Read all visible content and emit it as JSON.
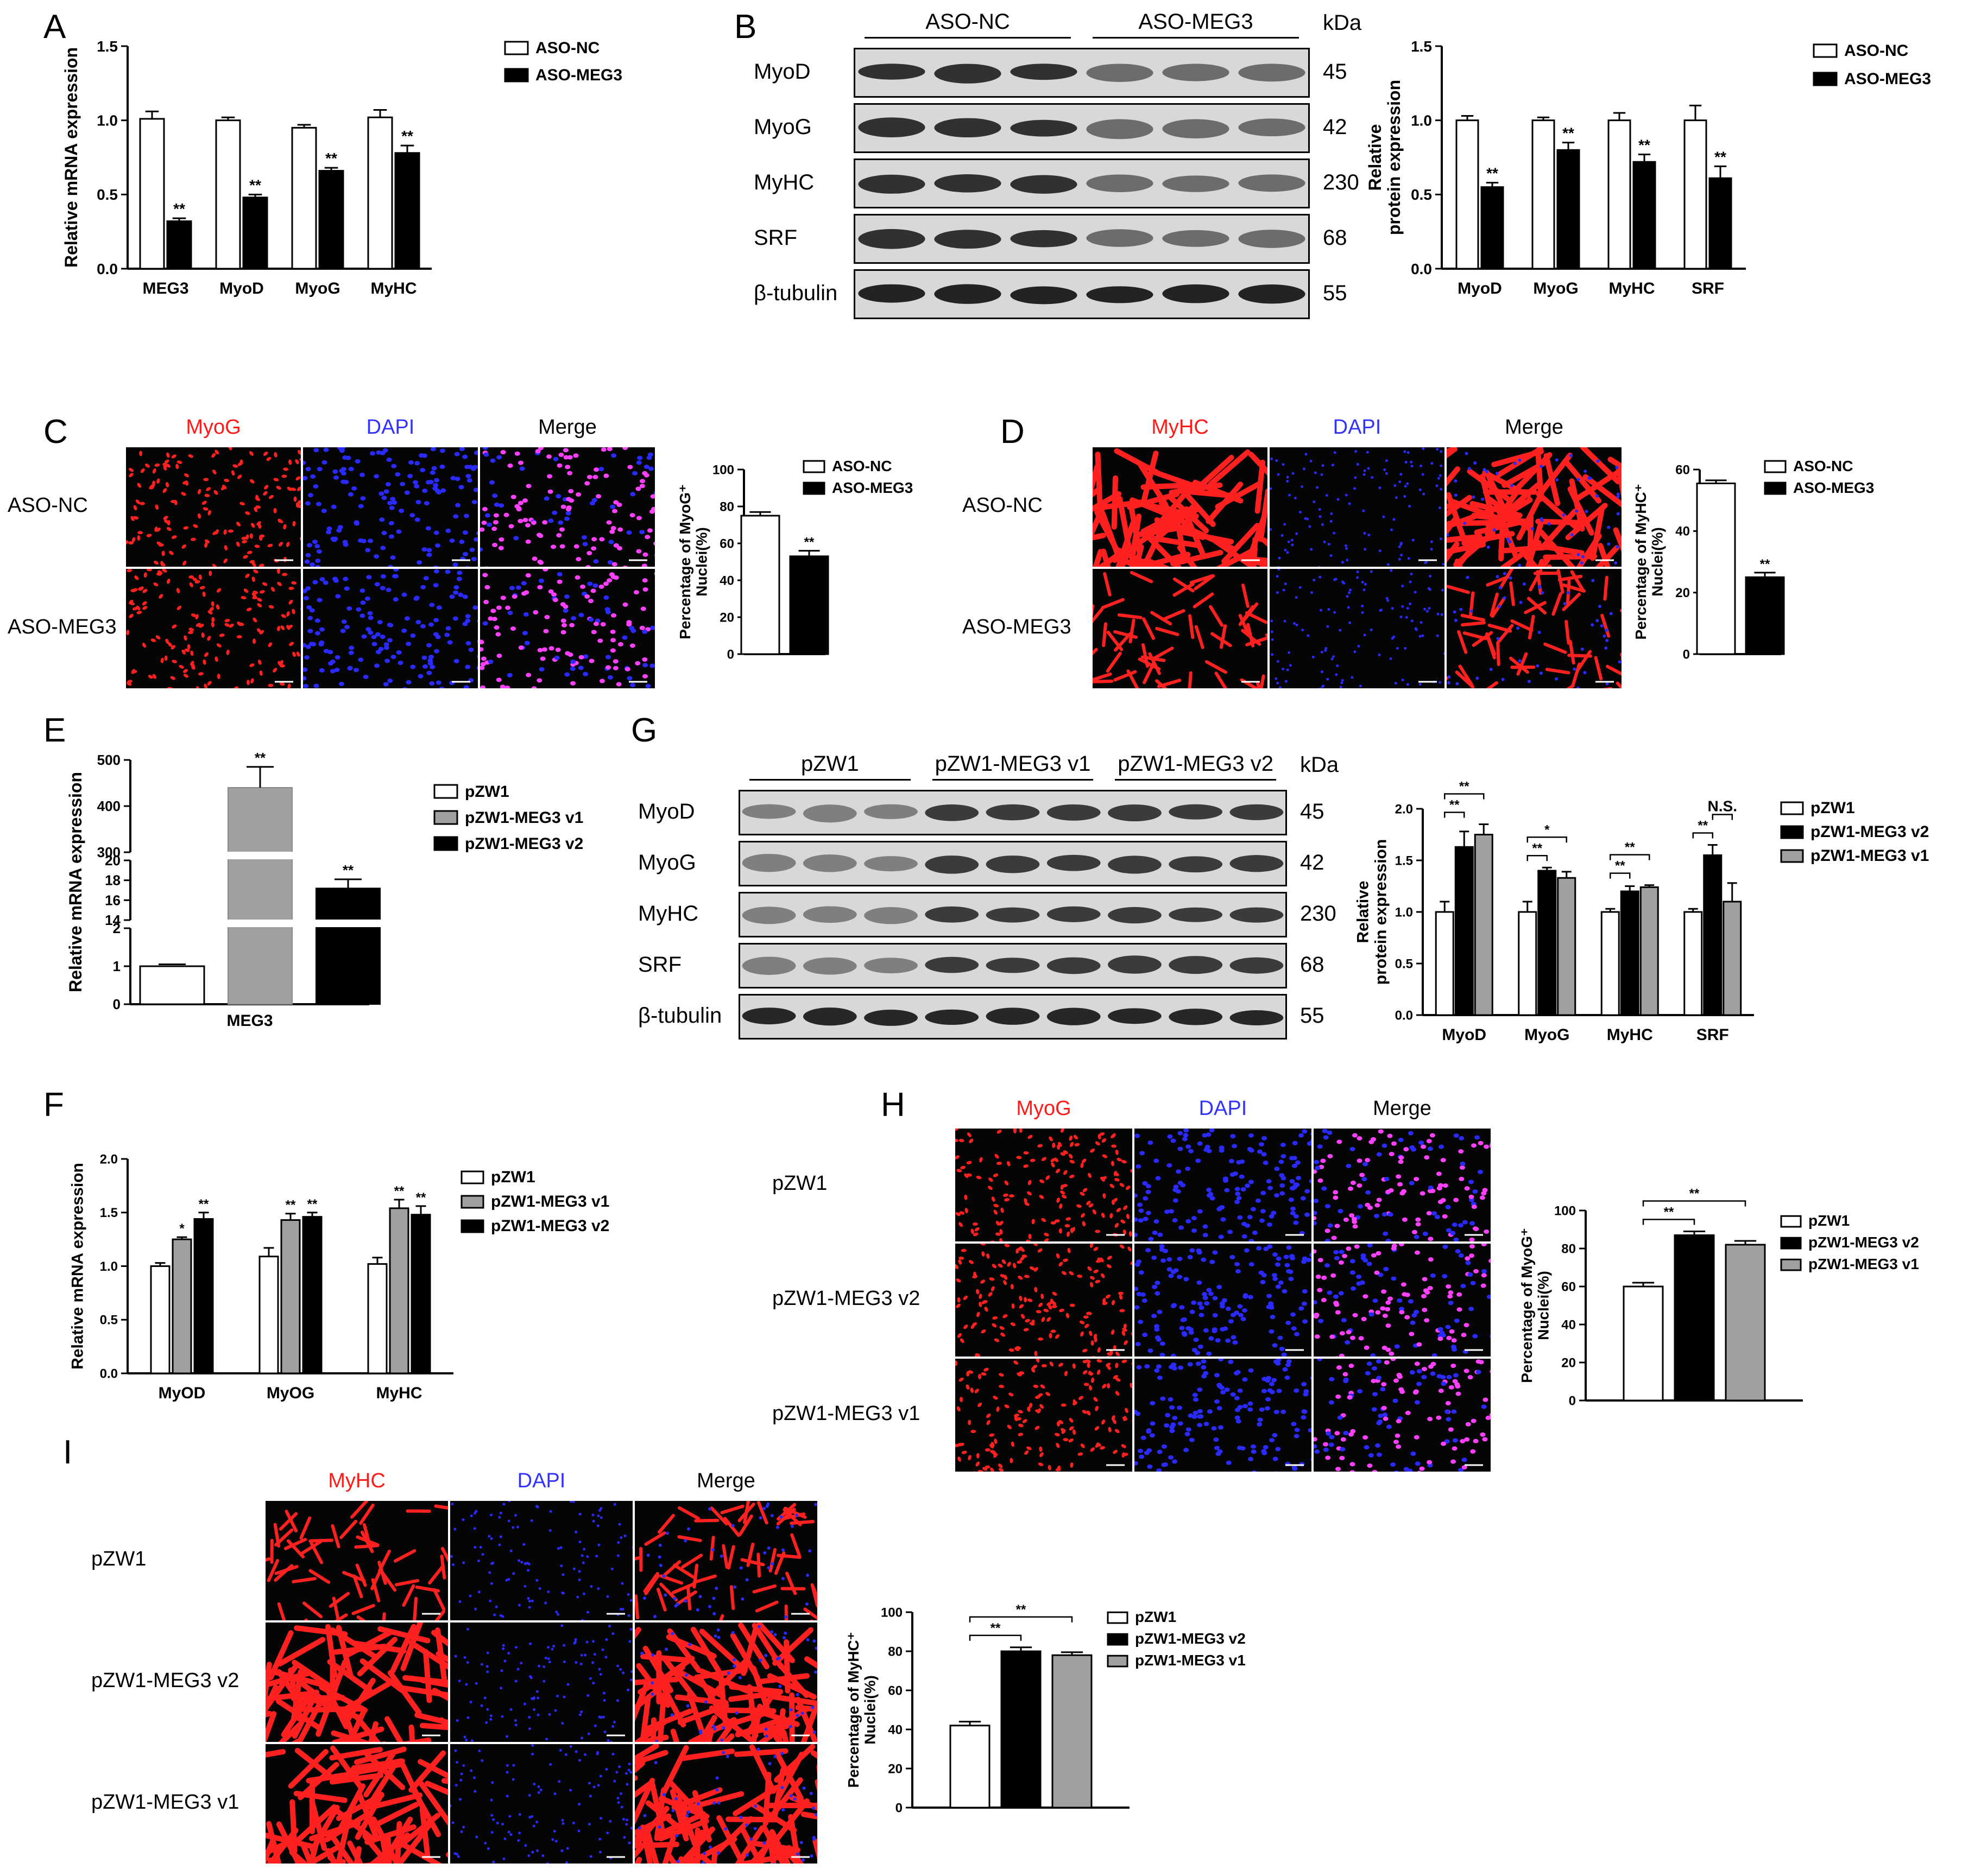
{
  "panels": {
    "A": "A",
    "B": "B",
    "C": "C",
    "D": "D",
    "E": "E",
    "F": "F",
    "G": "G",
    "H": "H",
    "I": "I"
  },
  "colors": {
    "myog_red": "#ff1a1a",
    "dapi_blue": "#3333ff",
    "merge_black": "#000000",
    "white_bar": "#ffffff",
    "black_bar": "#000000",
    "gray_bar": "#a0a0a0"
  },
  "chart_data": [
    {
      "id": "A",
      "type": "bar",
      "ylabel": "Relative mRNA expression",
      "ylim": [
        0,
        1.5
      ],
      "yticks": [
        "0.0",
        "0.5",
        "1.0",
        "1.5"
      ],
      "categories": [
        "MEG3",
        "MyoD",
        "MyoG",
        "MyHC"
      ],
      "series": [
        {
          "name": "ASO-NC",
          "fill": "#ffffff",
          "values": [
            1.01,
            1.0,
            0.95,
            1.02
          ],
          "err": [
            0.05,
            0.02,
            0.02,
            0.05
          ],
          "sig": [
            "",
            "",
            "",
            ""
          ]
        },
        {
          "name": "ASO-MEG3",
          "fill": "#000000",
          "values": [
            0.32,
            0.48,
            0.66,
            0.78
          ],
          "err": [
            0.02,
            0.02,
            0.02,
            0.05
          ],
          "sig": [
            "**",
            "**",
            "**",
            "**"
          ]
        }
      ]
    },
    {
      "id": "B",
      "type": "bar",
      "ylabel": "Relative protein expression",
      "ylim": [
        0,
        1.5
      ],
      "yticks": [
        "0.0",
        "0.5",
        "1.0",
        "1.5"
      ],
      "categories": [
        "MyoD",
        "MyoG",
        "MyHC",
        "SRF"
      ],
      "series": [
        {
          "name": "ASO-NC",
          "fill": "#ffffff",
          "values": [
            1.0,
            1.0,
            1.0,
            1.0
          ],
          "err": [
            0.03,
            0.02,
            0.05,
            0.1
          ],
          "sig": [
            "",
            "",
            "",
            ""
          ]
        },
        {
          "name": "ASO-MEG3",
          "fill": "#000000",
          "values": [
            0.55,
            0.8,
            0.72,
            0.61
          ],
          "err": [
            0.03,
            0.05,
            0.05,
            0.08
          ],
          "sig": [
            "**",
            "**",
            "**",
            "**"
          ]
        }
      ]
    },
    {
      "id": "C",
      "type": "bar",
      "ylabel": "Percentage of MyoG+ Nuclei(%)",
      "ylim": [
        0,
        100
      ],
      "yticks": [
        "0",
        "20",
        "40",
        "60",
        "80",
        "100"
      ],
      "categories": [
        ""
      ],
      "series": [
        {
          "name": "ASO-NC",
          "fill": "#ffffff",
          "values": [
            75
          ],
          "err": [
            2
          ],
          "sig": [
            ""
          ]
        },
        {
          "name": "ASO-MEG3",
          "fill": "#000000",
          "values": [
            53
          ],
          "err": [
            3
          ],
          "sig": [
            "**"
          ]
        }
      ]
    },
    {
      "id": "D",
      "type": "bar",
      "ylabel": "Percentage of MyHC+ Nuclei(%)",
      "ylim": [
        0,
        60
      ],
      "yticks": [
        "0",
        "20",
        "40",
        "60"
      ],
      "categories": [
        ""
      ],
      "series": [
        {
          "name": "ASO-NC",
          "fill": "#ffffff",
          "values": [
            55.5
          ],
          "err": [
            1
          ],
          "sig": [
            ""
          ]
        },
        {
          "name": "ASO-MEG3",
          "fill": "#000000",
          "values": [
            25
          ],
          "err": [
            1.5
          ],
          "sig": [
            "**"
          ]
        }
      ]
    },
    {
      "id": "E",
      "type": "bar",
      "ylabel": "Relative mRNA expression",
      "scale": "broken",
      "yticks": [
        "0",
        "1",
        "2",
        "14",
        "16",
        "18",
        "20",
        "300",
        "400",
        "500"
      ],
      "categories": [
        "MEG3"
      ],
      "series": [
        {
          "name": "pZW1",
          "fill": "#ffffff",
          "values": [
            1.0
          ],
          "err": [
            0.05
          ],
          "sig": [
            ""
          ]
        },
        {
          "name": "pZW1-MEG3 v1",
          "fill": "#a0a0a0",
          "values": [
            440
          ],
          "err": [
            45
          ],
          "sig": [
            "**"
          ]
        },
        {
          "name": "pZW1-MEG3 v2",
          "fill": "#000000",
          "values": [
            17.2
          ],
          "err": [
            0.9
          ],
          "sig": [
            "**"
          ]
        }
      ]
    },
    {
      "id": "F",
      "type": "bar",
      "ylabel": "Relative mRNA expression",
      "ylim": [
        0,
        2.0
      ],
      "yticks": [
        "0.0",
        "0.5",
        "1.0",
        "1.5",
        "2.0"
      ],
      "categories": [
        "MyOD",
        "MyOG",
        "MyHC"
      ],
      "series": [
        {
          "name": "pZW1",
          "fill": "#ffffff",
          "values": [
            1.0,
            1.09,
            1.02
          ],
          "err": [
            0.03,
            0.08,
            0.06
          ],
          "sig": [
            "",
            "",
            ""
          ]
        },
        {
          "name": "pZW1-MEG3 v1",
          "fill": "#a0a0a0",
          "values": [
            1.25,
            1.43,
            1.54
          ],
          "err": [
            0.02,
            0.06,
            0.08
          ],
          "sig": [
            "*",
            "**",
            "**"
          ]
        },
        {
          "name": "pZW1-MEG3 v2",
          "fill": "#000000",
          "values": [
            1.44,
            1.46,
            1.48
          ],
          "err": [
            0.06,
            0.04,
            0.08
          ],
          "sig": [
            "**",
            "**",
            "**"
          ]
        }
      ]
    },
    {
      "id": "G",
      "type": "bar",
      "ylabel": "Relative protein expression",
      "ylim": [
        0,
        2.0
      ],
      "yticks": [
        "0.0",
        "0.5",
        "1.0",
        "1.5",
        "2.0"
      ],
      "categories": [
        "MyoD",
        "MyoG",
        "MyHC",
        "SRF"
      ],
      "series": [
        {
          "name": "pZW1",
          "fill": "#ffffff",
          "values": [
            1.0,
            1.0,
            1.0,
            1.0
          ],
          "err": [
            0.1,
            0.1,
            0.03,
            0.03
          ],
          "sig": [
            "",
            "",
            "",
            ""
          ]
        },
        {
          "name": "pZW1-MEG3 v2",
          "fill": "#000000",
          "values": [
            1.63,
            1.4,
            1.2,
            1.55
          ],
          "err": [
            0.15,
            0.03,
            0.05,
            0.1
          ],
          "sig": [
            "",
            "",
            "",
            ""
          ]
        },
        {
          "name": "pZW1-MEG3 v1",
          "fill": "#a0a0a0",
          "values": [
            1.75,
            1.33,
            1.24,
            1.1
          ],
          "err": [
            0.1,
            0.06,
            0.02,
            0.18
          ],
          "sig": [
            "",
            "",
            "",
            ""
          ]
        }
      ],
      "brackets": [
        {
          "cat": 0,
          "from": 0,
          "to": 1,
          "label": "**",
          "level": 0
        },
        {
          "cat": 0,
          "from": 0,
          "to": 2,
          "label": "**",
          "level": 1
        },
        {
          "cat": 1,
          "from": 0,
          "to": 1,
          "label": "**",
          "level": 0
        },
        {
          "cat": 1,
          "from": 0,
          "to": 2,
          "label": "*",
          "level": 1
        },
        {
          "cat": 2,
          "from": 0,
          "to": 1,
          "label": "**",
          "level": 0
        },
        {
          "cat": 2,
          "from": 0,
          "to": 2,
          "label": "**",
          "level": 1
        },
        {
          "cat": 3,
          "from": 0,
          "to": 1,
          "label": "**",
          "level": 0
        },
        {
          "cat": 3,
          "from": 1,
          "to": 2,
          "label": "N.S.",
          "level": 1
        }
      ]
    },
    {
      "id": "H",
      "type": "bar",
      "ylabel": "Percentage of MyoG+ Nuclei(%)",
      "ylim": [
        0,
        100
      ],
      "yticks": [
        "0",
        "20",
        "40",
        "60",
        "80",
        "100"
      ],
      "categories": [
        ""
      ],
      "series": [
        {
          "name": "pZW1",
          "fill": "#ffffff",
          "values": [
            60
          ],
          "err": [
            2
          ],
          "sig": [
            ""
          ]
        },
        {
          "name": "pZW1-MEG3 v2",
          "fill": "#000000",
          "values": [
            87
          ],
          "err": [
            2
          ],
          "sig": [
            ""
          ]
        },
        {
          "name": "pZW1-MEG3 v1",
          "fill": "#a0a0a0",
          "values": [
            82
          ],
          "err": [
            2
          ],
          "sig": [
            ""
          ]
        }
      ],
      "brackets": [
        {
          "cat": 0,
          "from": 0,
          "to": 1,
          "label": "**",
          "level": 0
        },
        {
          "cat": 0,
          "from": 0,
          "to": 2,
          "label": "**",
          "level": 1
        }
      ]
    },
    {
      "id": "I",
      "type": "bar",
      "ylabel": "Percentage of MyHC+ Nuclei(%)",
      "ylim": [
        0,
        100
      ],
      "yticks": [
        "0",
        "20",
        "40",
        "60",
        "80",
        "100"
      ],
      "categories": [
        ""
      ],
      "series": [
        {
          "name": "pZW1",
          "fill": "#ffffff",
          "values": [
            42
          ],
          "err": [
            2
          ],
          "sig": [
            ""
          ]
        },
        {
          "name": "pZW1-MEG3 v2",
          "fill": "#000000",
          "values": [
            80
          ],
          "err": [
            2
          ],
          "sig": [
            ""
          ]
        },
        {
          "name": "pZW1-MEG3 v1",
          "fill": "#a0a0a0",
          "values": [
            78
          ],
          "err": [
            1.5
          ],
          "sig": [
            ""
          ]
        }
      ],
      "brackets": [
        {
          "cat": 0,
          "from": 0,
          "to": 1,
          "label": "**",
          "level": 0
        },
        {
          "cat": 0,
          "from": 0,
          "to": 2,
          "label": "**",
          "level": 1
        }
      ]
    }
  ],
  "blotB": {
    "groups": [
      "ASO-NC",
      "ASO-MEG3"
    ],
    "kda_label": "kDa",
    "rows": [
      {
        "label": "MyoD",
        "kda": "45"
      },
      {
        "label": "MyoG",
        "kda": "42"
      },
      {
        "label": "MyHC",
        "kda": "230"
      },
      {
        "label": "SRF",
        "kda": "68"
      },
      {
        "label": "β-tubulin",
        "kda": "55"
      }
    ]
  },
  "blotG": {
    "groups": [
      "pZW1",
      "pZW1-MEG3 v1",
      "pZW1-MEG3 v2"
    ],
    "kda_label": "kDa",
    "rows": [
      {
        "label": "MyoD",
        "kda": "45"
      },
      {
        "label": "MyoG",
        "kda": "42"
      },
      {
        "label": "MyHC",
        "kda": "230"
      },
      {
        "label": "SRF",
        "kda": "68"
      },
      {
        "label": "β-tubulin",
        "kda": "55"
      }
    ]
  },
  "micrographs": {
    "C": {
      "cols": [
        "MyoG",
        "DAPI",
        "Merge"
      ],
      "rows": [
        "ASO-NC",
        "ASO-MEG3"
      ],
      "stain": "nuclei"
    },
    "D": {
      "cols": [
        "MyHC",
        "DAPI",
        "Merge"
      ],
      "rows": [
        "ASO-NC",
        "ASO-MEG3"
      ],
      "stain": "fibers"
    },
    "H": {
      "cols": [
        "MyoG",
        "DAPI",
        "Merge"
      ],
      "rows": [
        "pZW1",
        "pZW1-MEG3 v2",
        "pZW1-MEG3 v1"
      ],
      "stain": "nuclei"
    },
    "I": {
      "cols": [
        "MyHC",
        "DAPI",
        "Merge"
      ],
      "rows": [
        "pZW1",
        "pZW1-MEG3 v2",
        "pZW1-MEG3 v1"
      ],
      "stain": "fibers"
    }
  }
}
